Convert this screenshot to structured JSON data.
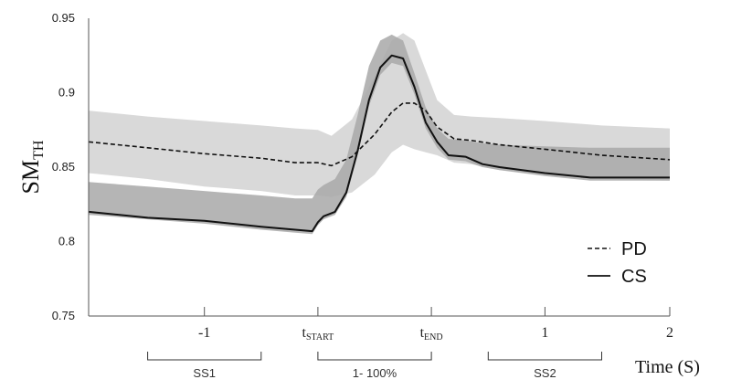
{
  "chart_data": {
    "type": "line",
    "ylabel_main": "SM",
    "ylabel_sub": "TH",
    "xlabel": "Time (S)",
    "ylim": [
      0.75,
      0.95
    ],
    "y_ticks": [
      "0.75",
      "0.8",
      "0.85",
      "0.9",
      "0.95"
    ],
    "x_ticks": [
      {
        "label": "-1",
        "sub": "",
        "x": -1
      },
      {
        "label": "t",
        "sub": "START",
        "x": 0
      },
      {
        "label": "t",
        "sub": "END",
        "x": 1
      },
      {
        "label": "1",
        "sub": "",
        "x": 2
      },
      {
        "label": "2",
        "sub": "",
        "x": 3.1
      }
    ],
    "xlim": [
      -2.02,
      3.1
    ],
    "segments": [
      {
        "label": "SS1",
        "x0": -1.5,
        "x1": -0.5
      },
      {
        "label": "1- 100%",
        "x0": 0,
        "x1": 1
      },
      {
        "label": "SS2",
        "x0": 1.5,
        "x1": 2.5
      }
    ],
    "legend": [
      {
        "label": "PD",
        "style": "dashed"
      },
      {
        "label": "CS",
        "style": "solid"
      }
    ],
    "series": [
      {
        "name": "PD",
        "style": "dashed",
        "band_color": "#d9d9d9",
        "x": [
          -2.02,
          -1.5,
          -1.0,
          -0.5,
          -0.2,
          0.0,
          0.12,
          0.3,
          0.5,
          0.65,
          0.75,
          0.85,
          0.95,
          1.05,
          1.2,
          1.35,
          1.6,
          2.0,
          2.5,
          3.1
        ],
        "values": [
          0.867,
          0.863,
          0.859,
          0.856,
          0.853,
          0.853,
          0.851,
          0.857,
          0.872,
          0.887,
          0.893,
          0.893,
          0.888,
          0.877,
          0.869,
          0.868,
          0.865,
          0.862,
          0.858,
          0.855
        ],
        "upper": [
          0.888,
          0.884,
          0.881,
          0.878,
          0.876,
          0.875,
          0.871,
          0.882,
          0.911,
          0.935,
          0.94,
          0.935,
          0.915,
          0.895,
          0.885,
          0.884,
          0.883,
          0.881,
          0.878,
          0.876
        ],
        "lower": [
          0.846,
          0.842,
          0.837,
          0.834,
          0.831,
          0.831,
          0.83,
          0.833,
          0.845,
          0.86,
          0.865,
          0.862,
          0.86,
          0.858,
          0.853,
          0.852,
          0.848,
          0.845,
          0.842,
          0.841
        ]
      },
      {
        "name": "CS",
        "style": "solid",
        "band_color": "#a8a8a8",
        "x": [
          -2.02,
          -1.5,
          -1.0,
          -0.5,
          -0.2,
          -0.05,
          0.0,
          0.05,
          0.15,
          0.25,
          0.35,
          0.45,
          0.55,
          0.65,
          0.75,
          0.85,
          0.95,
          1.05,
          1.15,
          1.3,
          1.45,
          1.6,
          2.0,
          2.4,
          3.1
        ],
        "values": [
          0.82,
          0.816,
          0.814,
          0.81,
          0.808,
          0.807,
          0.813,
          0.817,
          0.82,
          0.833,
          0.861,
          0.895,
          0.917,
          0.925,
          0.923,
          0.904,
          0.88,
          0.867,
          0.858,
          0.857,
          0.852,
          0.85,
          0.846,
          0.843,
          0.843
        ],
        "upper": [
          0.84,
          0.837,
          0.834,
          0.831,
          0.829,
          0.829,
          0.835,
          0.838,
          0.842,
          0.855,
          0.885,
          0.918,
          0.935,
          0.939,
          0.935,
          0.913,
          0.89,
          0.876,
          0.869,
          0.868,
          0.866,
          0.865,
          0.864,
          0.863,
          0.863
        ],
        "lower": [
          0.818,
          0.815,
          0.812,
          0.808,
          0.806,
          0.805,
          0.811,
          0.815,
          0.818,
          0.83,
          0.858,
          0.891,
          0.912,
          0.92,
          0.918,
          0.899,
          0.876,
          0.863,
          0.855,
          0.854,
          0.85,
          0.848,
          0.844,
          0.841,
          0.841
        ]
      }
    ]
  }
}
